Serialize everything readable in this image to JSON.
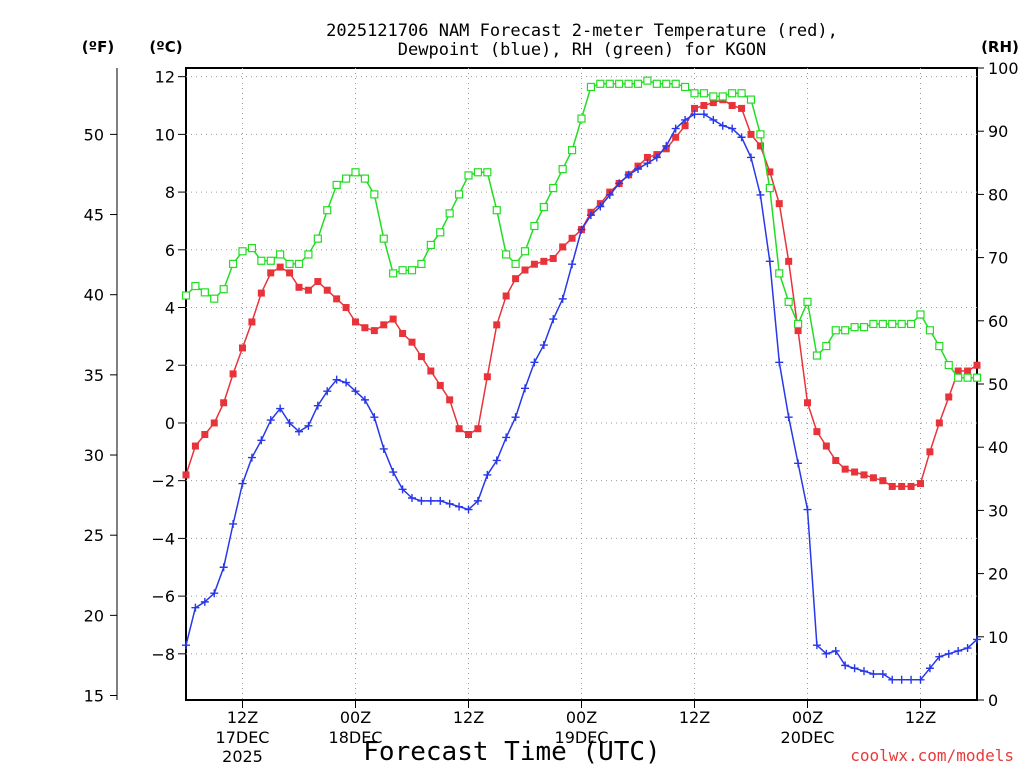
{
  "chart_data": {
    "type": "line",
    "title_line1": "2025121706 NAM Forecast 2-meter Temperature (red),",
    "title_line2": "Dewpoint (blue), RH (green) for KGON",
    "xlabel": "Forecast Time (UTC)",
    "watermark": "coolwx.com/models",
    "left_unit_f": "(ºF)",
    "left_unit_c": "(ºC)",
    "right_unit": "(RH)",
    "x_range_hours": [
      0,
      84
    ],
    "y_range_c": [
      -9.6,
      12.3
    ],
    "y_range_rh": [
      0,
      100
    ],
    "celsius_ticks": [
      "12",
      "10",
      "8",
      "6",
      "4",
      "2",
      "0",
      "−2",
      "−4",
      "−6",
      "−8"
    ],
    "fahrenheit_ticks": [
      "50",
      "45",
      "40",
      "35",
      "30",
      "25",
      "20",
      "15"
    ],
    "rh_ticks": [
      "100",
      "90",
      "80",
      "70",
      "60",
      "50",
      "40",
      "30",
      "20",
      "10",
      "0"
    ],
    "x_ticks": [
      {
        "hour": 6,
        "line1": "12Z",
        "line2": "17DEC",
        "line3": "2025"
      },
      {
        "hour": 18,
        "line1": "00Z",
        "line2": "18DEC",
        "line3": ""
      },
      {
        "hour": 30,
        "line1": "12Z",
        "line2": "",
        "line3": ""
      },
      {
        "hour": 42,
        "line1": "00Z",
        "line2": "19DEC",
        "line3": ""
      },
      {
        "hour": 54,
        "line1": "12Z",
        "line2": "",
        "line3": ""
      },
      {
        "hour": 66,
        "line1": "00Z",
        "line2": "20DEC",
        "line3": ""
      },
      {
        "hour": 78,
        "line1": "12Z",
        "line2": "",
        "line3": ""
      }
    ],
    "series": [
      {
        "name": "Temperature",
        "unit": "C",
        "color": "#e8333a",
        "marker": "filled-square",
        "x": [
          0,
          1,
          2,
          3,
          4,
          5,
          6,
          7,
          8,
          9,
          10,
          11,
          12,
          13,
          14,
          15,
          16,
          17,
          18,
          19,
          20,
          21,
          22,
          23,
          24,
          25,
          26,
          27,
          28,
          29,
          30,
          31,
          32,
          33,
          34,
          35,
          36,
          37,
          38,
          39,
          40,
          41,
          42,
          43,
          44,
          45,
          46,
          47,
          48,
          49,
          50,
          51,
          52,
          53,
          54,
          55,
          56,
          57,
          58,
          59,
          60,
          61,
          62,
          63,
          64,
          65,
          66,
          67,
          68,
          69,
          70,
          71,
          72,
          73,
          74,
          75,
          76,
          77,
          78,
          79,
          80,
          81,
          82,
          83,
          84
        ],
        "values": [
          -1.8,
          -0.8,
          -0.4,
          0.0,
          0.7,
          1.7,
          2.6,
          3.5,
          4.5,
          5.2,
          5.4,
          5.2,
          4.7,
          4.6,
          4.9,
          4.6,
          4.3,
          4.0,
          3.5,
          3.3,
          3.2,
          3.4,
          3.6,
          3.1,
          2.8,
          2.3,
          1.8,
          1.3,
          0.8,
          -0.2,
          -0.4,
          -0.2,
          1.6,
          3.4,
          4.4,
          5.0,
          5.3,
          5.5,
          5.6,
          5.7,
          6.1,
          6.4,
          6.7,
          7.3,
          7.6,
          8.0,
          8.3,
          8.6,
          8.9,
          9.2,
          9.3,
          9.5,
          9.9,
          10.3,
          10.9,
          11.0,
          11.1,
          11.2,
          11.0,
          10.9,
          10.0,
          9.6,
          8.7,
          7.6,
          5.6,
          3.2,
          0.7,
          -0.3,
          -0.8,
          -1.3,
          -1.6,
          -1.7,
          -1.8,
          -1.9,
          -2.0,
          -2.2,
          -2.2,
          -2.2,
          -2.1,
          -1.0,
          0.0,
          0.9,
          1.8,
          1.8,
          2.0
        ]
      },
      {
        "name": "Dewpoint",
        "unit": "C",
        "color": "#2838e8",
        "marker": "plus",
        "x": [
          0,
          1,
          2,
          3,
          4,
          5,
          6,
          7,
          8,
          9,
          10,
          11,
          12,
          13,
          14,
          15,
          16,
          17,
          18,
          19,
          20,
          21,
          22,
          23,
          24,
          25,
          26,
          27,
          28,
          29,
          30,
          31,
          32,
          33,
          34,
          35,
          36,
          37,
          38,
          39,
          40,
          41,
          42,
          43,
          44,
          45,
          46,
          47,
          48,
          49,
          50,
          51,
          52,
          53,
          54,
          55,
          56,
          57,
          58,
          59,
          60,
          61,
          62,
          63,
          64,
          65,
          66,
          67,
          68,
          69,
          70,
          71,
          72,
          73,
          74,
          75,
          76,
          77,
          78,
          79,
          80,
          81,
          82,
          83,
          84
        ],
        "values": [
          -7.7,
          -6.4,
          -6.2,
          -5.9,
          -5.0,
          -3.5,
          -2.1,
          -1.2,
          -0.6,
          0.1,
          0.5,
          0.0,
          -0.3,
          -0.1,
          0.6,
          1.1,
          1.5,
          1.4,
          1.1,
          0.8,
          0.2,
          -0.9,
          -1.7,
          -2.3,
          -2.6,
          -2.7,
          -2.7,
          -2.7,
          -2.8,
          -2.9,
          -3.0,
          -2.7,
          -1.8,
          -1.3,
          -0.5,
          0.2,
          1.2,
          2.1,
          2.7,
          3.6,
          4.3,
          5.5,
          6.7,
          7.2,
          7.5,
          7.9,
          8.3,
          8.6,
          8.8,
          9.0,
          9.2,
          9.6,
          10.2,
          10.5,
          10.7,
          10.7,
          10.5,
          10.3,
          10.2,
          9.9,
          9.2,
          7.9,
          5.6,
          2.1,
          0.2,
          -1.4,
          -3.0,
          -7.7,
          -8.0,
          -7.9,
          -8.4,
          -8.5,
          -8.6,
          -8.7,
          -8.7,
          -8.9,
          -8.9,
          -8.9,
          -8.9,
          -8.5,
          -8.1,
          -8.0,
          -7.9,
          -7.8,
          -7.5
        ]
      },
      {
        "name": "RH",
        "unit": "%",
        "color": "#22dd22",
        "marker": "open-square",
        "x": [
          0,
          1,
          2,
          3,
          4,
          5,
          6,
          7,
          8,
          9,
          10,
          11,
          12,
          13,
          14,
          15,
          16,
          17,
          18,
          19,
          20,
          21,
          22,
          23,
          24,
          25,
          26,
          27,
          28,
          29,
          30,
          31,
          32,
          33,
          34,
          35,
          36,
          37,
          38,
          39,
          40,
          41,
          42,
          43,
          44,
          45,
          46,
          47,
          48,
          49,
          50,
          51,
          52,
          53,
          54,
          55,
          56,
          57,
          58,
          59,
          60,
          61,
          62,
          63,
          64,
          65,
          66,
          67,
          68,
          69,
          70,
          71,
          72,
          73,
          74,
          75,
          76,
          77,
          78,
          79,
          80,
          81,
          82,
          83,
          84
        ],
        "values": [
          64,
          65.5,
          64.5,
          63.5,
          65,
          69,
          71,
          71.5,
          69.5,
          69.5,
          70.5,
          69,
          69,
          70.5,
          73,
          77.5,
          81.5,
          82.5,
          83.5,
          82.5,
          80,
          73,
          67.5,
          68,
          68,
          69,
          72,
          74,
          77,
          80,
          83,
          83.5,
          83.5,
          77.5,
          70.5,
          69,
          71,
          75,
          78,
          81,
          84,
          87,
          92,
          97,
          97.5,
          97.5,
          97.5,
          97.5,
          97.5,
          98,
          97.5,
          97.5,
          97.5,
          97,
          96,
          96,
          95.5,
          95.5,
          96,
          96,
          95,
          89.5,
          81,
          67.5,
          63,
          59.5,
          63,
          54.5,
          56,
          58.5,
          58.5,
          59,
          59,
          59.5,
          59.5,
          59.5,
          59.5,
          59.5,
          61,
          58.5,
          56,
          53,
          51,
          51,
          51
        ]
      }
    ]
  }
}
